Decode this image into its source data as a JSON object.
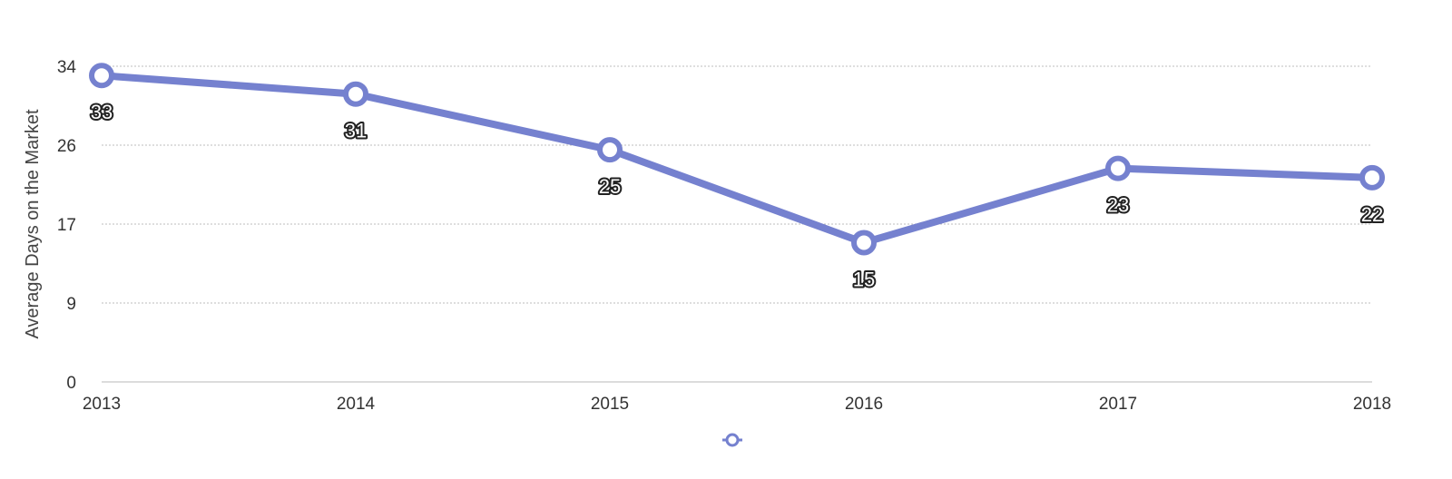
{
  "chart_data": {
    "type": "line",
    "title": "",
    "xlabel": "",
    "ylabel": "Average Days on the Market",
    "categories": [
      "2013",
      "2014",
      "2015",
      "2016",
      "2017",
      "2018"
    ],
    "series": [
      {
        "values": [
          33,
          31,
          25,
          15,
          23,
          22
        ]
      }
    ],
    "data_labels": [
      "33",
      "31",
      "25",
      "15",
      "23",
      "22"
    ],
    "y_ticks": [
      "0",
      "9",
      "17",
      "26",
      "34"
    ],
    "y_tick_values": [
      0,
      8.5,
      17,
      25.5,
      34
    ],
    "ylim": [
      0,
      34
    ],
    "grid": true,
    "legend": "bottom-center",
    "colors": {
      "series": "#7581cf",
      "grid": "#bdbdbd",
      "label_outline": "#222222"
    }
  }
}
